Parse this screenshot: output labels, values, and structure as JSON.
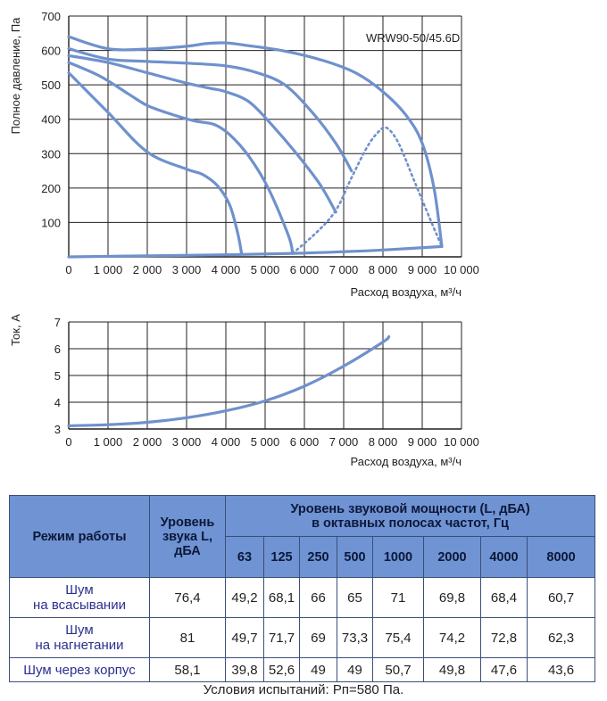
{
  "colors": {
    "curve": "#6f91cc",
    "axis": "#231f20",
    "header_bg": "#6f93d3"
  },
  "chart_data": [
    {
      "type": "line",
      "title": "WRW90-50/45.6D",
      "xlabel": "Расход воздуха, м³/ч",
      "ylabel": "Полное давление, Па",
      "xlim": [
        0,
        10000
      ],
      "ylim": [
        0,
        700
      ],
      "x_ticks": [
        "0",
        "1 000",
        "2 000",
        "3 000",
        "4 000",
        "5 000",
        "6 000",
        "7 000",
        "8 000",
        "9 000",
        "10 000"
      ],
      "y_ticks": [
        "700",
        "600",
        "500",
        "400",
        "300",
        "200",
        "100"
      ],
      "grid": true,
      "series": [
        {
          "style": "solid",
          "points": [
            [
              0,
              640
            ],
            [
              1000,
              605
            ],
            [
              2000,
              604
            ],
            [
              3000,
              612
            ],
            [
              3500,
              620
            ],
            [
              4000,
              622
            ],
            [
              4500,
              615
            ],
            [
              5500,
              598
            ],
            [
              6500,
              570
            ],
            [
              7300,
              535
            ],
            [
              8000,
              480
            ],
            [
              8600,
              410
            ],
            [
              9000,
              330
            ],
            [
              9300,
              200
            ],
            [
              9500,
              30
            ]
          ]
        },
        {
          "style": "solid",
          "points": [
            [
              0,
              605
            ],
            [
              1000,
              575
            ],
            [
              2000,
              568
            ],
            [
              3000,
              563
            ],
            [
              4000,
              555
            ],
            [
              4800,
              535
            ],
            [
              5500,
              500
            ],
            [
              6200,
              420
            ],
            [
              6800,
              330
            ],
            [
              7200,
              250
            ]
          ]
        },
        {
          "style": "solid",
          "points": [
            [
              0,
              585
            ],
            [
              1000,
              565
            ],
            [
              2000,
              535
            ],
            [
              3000,
              505
            ],
            [
              3600,
              490
            ],
            [
              4000,
              480
            ],
            [
              4600,
              450
            ],
            [
              5200,
              380
            ],
            [
              5800,
              300
            ],
            [
              6400,
              210
            ],
            [
              6800,
              130
            ]
          ]
        },
        {
          "style": "solid",
          "points": [
            [
              0,
              565
            ],
            [
              800,
              525
            ],
            [
              1500,
              475
            ],
            [
              2000,
              440
            ],
            [
              2600,
              415
            ],
            [
              3200,
              395
            ],
            [
              3700,
              385
            ],
            [
              4100,
              355
            ],
            [
              4600,
              290
            ],
            [
              5100,
              195
            ],
            [
              5600,
              60
            ],
            [
              5700,
              10
            ]
          ]
        },
        {
          "style": "solid",
          "points": [
            [
              0,
              535
            ],
            [
              1000,
              420
            ],
            [
              2000,
              305
            ],
            [
              3000,
              255
            ],
            [
              3400,
              240
            ],
            [
              3800,
              205
            ],
            [
              4100,
              150
            ],
            [
              4300,
              70
            ],
            [
              4400,
              10
            ]
          ]
        },
        {
          "style": "solid",
          "points": [
            [
              0,
              0
            ],
            [
              2000,
              3
            ],
            [
              4000,
              6
            ],
            [
              5700,
              10
            ],
            [
              7000,
              15
            ],
            [
              8000,
              20
            ],
            [
              9500,
              30
            ]
          ]
        },
        {
          "style": "dotted",
          "points": [
            [
              5700,
              10
            ],
            [
              6300,
              70
            ],
            [
              6800,
              135
            ],
            [
              7200,
              230
            ],
            [
              7600,
              320
            ],
            [
              7900,
              365
            ],
            [
              8100,
              375
            ],
            [
              8400,
              330
            ],
            [
              8800,
              220
            ],
            [
              9200,
              110
            ],
            [
              9500,
              30
            ]
          ]
        }
      ]
    },
    {
      "type": "line",
      "xlabel": "Расход воздуха, м³/ч",
      "ylabel": "Ток, А",
      "xlim": [
        0,
        10000
      ],
      "ylim": [
        3,
        7
      ],
      "x_ticks": [
        "0",
        "1 000",
        "2 000",
        "3 000",
        "4 000",
        "5 000",
        "6 000",
        "7 000",
        "8 000",
        "9 000",
        "10 000"
      ],
      "y_ticks": [
        "7",
        "6",
        "5",
        "4",
        "3"
      ],
      "grid": true,
      "series": [
        {
          "style": "solid",
          "points": [
            [
              0,
              3.12
            ],
            [
              1000,
              3.16
            ],
            [
              2000,
              3.25
            ],
            [
              3000,
              3.42
            ],
            [
              4000,
              3.68
            ],
            [
              5000,
              4.05
            ],
            [
              6000,
              4.6
            ],
            [
              7000,
              5.35
            ],
            [
              8000,
              6.25
            ],
            [
              8150,
              6.45
            ]
          ]
        }
      ]
    }
  ],
  "table": {
    "col_mode": "Режим работы",
    "col_level": "Уровень звука L, дБА",
    "col_power_line1": "Уровень звуковой мощности (L, дБА)",
    "col_power_line2": "в октавных полосах частот, Гц",
    "freqs": [
      "63",
      "125",
      "250",
      "500",
      "1000",
      "2000",
      "4000",
      "8000"
    ],
    "rows": [
      {
        "mode_line1": "Шум",
        "mode_line2": "на всасывании",
        "level": "76,4",
        "values": [
          "49,2",
          "68,1",
          "66",
          "65",
          "71",
          "69,8",
          "68,4",
          "60,7"
        ]
      },
      {
        "mode_line1": "Шум",
        "mode_line2": "на нагнетании",
        "level": "81",
        "values": [
          "49,7",
          "71,7",
          "69",
          "73,3",
          "75,4",
          "74,2",
          "72,8",
          "62,3"
        ]
      },
      {
        "mode_line1": "Шум через корпус",
        "mode_line2": "",
        "level": "58,1",
        "values": [
          "39,8",
          "52,6",
          "49",
          "49",
          "50,7",
          "49,8",
          "47,6",
          "43,6"
        ]
      }
    ]
  },
  "conditions": "Условия испытаний: Pп=580 Па."
}
